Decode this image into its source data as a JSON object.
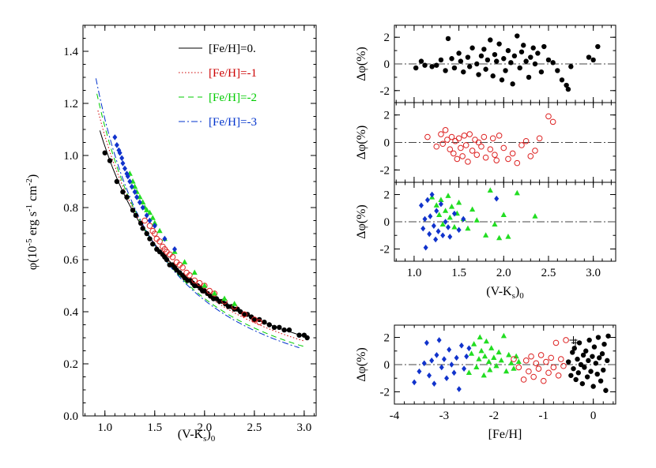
{
  "chart_data": [
    {
      "type": "scatter",
      "id": "main",
      "xlabel": "(V-K",
      "xlabel_sub": "s",
      "xlabel_tail": ")",
      "xlabel_sub2": "0",
      "ylabel_parts": [
        "φ(10",
        "-5",
        " erg s",
        "-1",
        " cm",
        "-2",
        ")"
      ],
      "xlim": [
        0.78,
        3.12
      ],
      "ylim": [
        0.0,
        1.5
      ],
      "xticks": [
        1.0,
        1.5,
        2.0,
        2.5,
        3.0
      ],
      "xtick_labels": [
        "1.0",
        "1.5",
        "2.0",
        "2.5",
        "3.0"
      ],
      "yticks": [
        0.0,
        0.2,
        0.4,
        0.6,
        0.8,
        1.0,
        1.2,
        1.4
      ],
      "ytick_labels": [
        "0.0",
        "0.2",
        "0.4",
        "0.6",
        "0.8",
        "1.0",
        "1.2",
        "1.4"
      ],
      "legend_position": "top-right",
      "legend": [
        {
          "label": "[Fe/H]=0.",
          "color": "#000000",
          "dash": "solid"
        },
        {
          "label": "[Fe/H]=-1",
          "color": "#cc0000",
          "dash": "dotted"
        },
        {
          "label": "[Fe/H]=-2",
          "color": "#00cc00",
          "dash": "dashed"
        },
        {
          "label": "[Fe/H]=-3",
          "color": "#0033cc",
          "dash": "dashdot"
        }
      ],
      "series": [
        {
          "name": "[Fe/H]=0.",
          "marker": "filled-circle",
          "color": "#000000",
          "x": [
            1.0,
            1.05,
            1.12,
            1.18,
            1.22,
            1.28,
            1.31,
            1.36,
            1.38,
            1.42,
            1.45,
            1.48,
            1.52,
            1.55,
            1.58,
            1.6,
            1.62,
            1.65,
            1.68,
            1.7,
            1.72,
            1.75,
            1.78,
            1.8,
            1.83,
            1.86,
            1.88,
            1.9,
            1.93,
            1.96,
            1.98,
            2.0,
            2.03,
            2.06,
            2.09,
            2.12,
            2.15,
            2.18,
            2.21,
            2.24,
            2.27,
            2.3,
            2.33,
            2.36,
            2.4,
            2.43,
            2.47,
            2.5,
            2.55,
            2.6,
            2.65,
            2.7,
            2.75,
            2.8,
            2.85,
            2.95,
            3.0,
            3.03
          ],
          "y": [
            1.01,
            0.98,
            0.9,
            0.86,
            0.84,
            0.79,
            0.77,
            0.74,
            0.72,
            0.7,
            0.68,
            0.66,
            0.64,
            0.63,
            0.62,
            0.61,
            0.6,
            0.58,
            0.58,
            0.57,
            0.56,
            0.55,
            0.54,
            0.53,
            0.52,
            0.52,
            0.51,
            0.5,
            0.5,
            0.49,
            0.48,
            0.48,
            0.47,
            0.46,
            0.45,
            0.45,
            0.44,
            0.44,
            0.43,
            0.42,
            0.42,
            0.41,
            0.41,
            0.4,
            0.39,
            0.39,
            0.38,
            0.37,
            0.37,
            0.36,
            0.35,
            0.34,
            0.34,
            0.33,
            0.33,
            0.31,
            0.31,
            0.3
          ]
        },
        {
          "name": "[Fe/H]=-1",
          "marker": "open-circle",
          "color": "#dd2222",
          "x": [
            1.4,
            1.45,
            1.48,
            1.5,
            1.52,
            1.55,
            1.58,
            1.6,
            1.62,
            1.65,
            1.68,
            1.72,
            1.75,
            1.78,
            1.82,
            1.85,
            1.9,
            1.95,
            2.0,
            2.05,
            2.1,
            2.2,
            2.3,
            2.4,
            2.5,
            2.55
          ],
          "y": [
            0.75,
            0.73,
            0.71,
            0.7,
            0.68,
            0.67,
            0.65,
            0.64,
            0.63,
            0.62,
            0.61,
            0.59,
            0.58,
            0.57,
            0.55,
            0.54,
            0.52,
            0.51,
            0.5,
            0.48,
            0.47,
            0.44,
            0.42,
            0.39,
            0.37,
            0.36
          ]
        },
        {
          "name": "[Fe/H]=-2",
          "marker": "filled-triangle",
          "color": "#22dd22",
          "x": [
            1.25,
            1.28,
            1.3,
            1.32,
            1.35,
            1.38,
            1.4,
            1.42,
            1.45,
            1.48,
            1.5,
            1.55,
            1.6,
            1.7,
            1.8,
            1.9,
            2.0,
            2.1,
            2.2,
            2.3
          ],
          "y": [
            0.93,
            0.9,
            0.88,
            0.86,
            0.84,
            0.82,
            0.8,
            0.79,
            0.78,
            0.76,
            0.74,
            0.71,
            0.68,
            0.63,
            0.59,
            0.55,
            0.5,
            0.47,
            0.45,
            0.43
          ]
        },
        {
          "name": "[Fe/H]=-3",
          "marker": "filled-diamond",
          "color": "#1133cc",
          "x": [
            1.1,
            1.12,
            1.14,
            1.15,
            1.17,
            1.18,
            1.2,
            1.22,
            1.23,
            1.25,
            1.27,
            1.3,
            1.32,
            1.35,
            1.38,
            1.42,
            1.45,
            1.5,
            1.6,
            1.7
          ],
          "y": [
            1.07,
            1.04,
            1.02,
            1.01,
            0.99,
            0.97,
            0.95,
            0.93,
            0.92,
            0.9,
            0.88,
            0.86,
            0.84,
            0.82,
            0.8,
            0.77,
            0.75,
            0.73,
            0.68,
            0.64
          ]
        }
      ],
      "fits": [
        {
          "name": "[Fe/H]=0.",
          "dash": "solid",
          "color": "#000000",
          "x0": 0.95,
          "x1": 3.05,
          "amp": 1.035,
          "exp": -1.11
        },
        {
          "name": "[Fe/H]=-1",
          "dash": "dotted",
          "color": "#cc0000",
          "x0": 0.93,
          "x1": 3.0,
          "amp": 1.075,
          "exp": -1.2
        },
        {
          "name": "[Fe/H]=-2",
          "dash": "dashed",
          "color": "#00cc00",
          "x0": 0.92,
          "x1": 3.0,
          "amp": 1.11,
          "exp": -1.3
        },
        {
          "name": "[Fe/H]=-3",
          "dash": "dashdot",
          "color": "#0033cc",
          "x0": 0.91,
          "x1": 2.95,
          "amp": 1.14,
          "exp": -1.36
        }
      ]
    },
    {
      "type": "scatter",
      "id": "res0",
      "ylabel": "Δφ(%)",
      "xlim": [
        0.78,
        3.25
      ],
      "ylim": [
        -2.9,
        2.9
      ],
      "yticks": [
        -2,
        0,
        2
      ],
      "ytick_labels": [
        "-2",
        "0",
        "2"
      ],
      "xticks": [
        1.0,
        1.5,
        2.0,
        2.5,
        3.0
      ],
      "series": [
        {
          "name": "[Fe/H]=0.",
          "marker": "filled-circle",
          "color": "#000000",
          "x": [
            1.02,
            1.08,
            1.12,
            1.2,
            1.25,
            1.3,
            1.35,
            1.38,
            1.42,
            1.45,
            1.5,
            1.52,
            1.55,
            1.6,
            1.62,
            1.65,
            1.7,
            1.72,
            1.75,
            1.78,
            1.8,
            1.82,
            1.85,
            1.88,
            1.9,
            1.92,
            1.95,
            1.98,
            2.0,
            2.02,
            2.05,
            2.08,
            2.1,
            2.12,
            2.15,
            2.18,
            2.2,
            2.22,
            2.25,
            2.28,
            2.3,
            2.33,
            2.35,
            2.38,
            2.42,
            2.45,
            2.5,
            2.55,
            2.6,
            2.65,
            2.7,
            2.72,
            2.75,
            2.95,
            3.0,
            3.05
          ],
          "y": [
            -0.3,
            0.2,
            -0.1,
            -0.2,
            -0.1,
            0.3,
            -0.5,
            1.9,
            0.4,
            -0.3,
            0.8,
            0.2,
            -0.6,
            0.5,
            -0.2,
            1.2,
            0.0,
            -0.8,
            0.6,
            1.1,
            -0.4,
            0.3,
            1.8,
            -0.9,
            0.7,
            0.2,
            1.5,
            -1.2,
            0.4,
            -0.5,
            1.0,
            0.1,
            -1.5,
            0.6,
            2.1,
            -0.3,
            0.9,
            1.4,
            0.2,
            -1.0,
            0.5,
            1.2,
            0.0,
            0.8,
            -0.6,
            1.3,
            0.3,
            0.1,
            -0.5,
            -1.2,
            -1.6,
            -1.9,
            -0.2,
            0.5,
            0.3,
            1.3
          ]
        }
      ]
    },
    {
      "type": "scatter",
      "id": "res1",
      "ylabel": "Δφ(%)",
      "xlim": [
        0.78,
        3.25
      ],
      "ylim": [
        -2.9,
        2.9
      ],
      "yticks": [
        -2,
        0,
        2
      ],
      "ytick_labels": [
        "-2",
        "0",
        "2"
      ],
      "xticks": [
        1.0,
        1.5,
        2.0,
        2.5,
        3.0
      ],
      "series": [
        {
          "name": "[Fe/H]=-1",
          "marker": "open-circle",
          "color": "#dd2222",
          "x": [
            1.15,
            1.25,
            1.3,
            1.32,
            1.35,
            1.37,
            1.4,
            1.42,
            1.44,
            1.46,
            1.48,
            1.5,
            1.52,
            1.54,
            1.56,
            1.58,
            1.6,
            1.62,
            1.65,
            1.68,
            1.7,
            1.72,
            1.75,
            1.78,
            1.8,
            1.85,
            1.88,
            1.9,
            1.92,
            1.95,
            2.0,
            2.05,
            2.1,
            2.15,
            2.2,
            2.25,
            2.3,
            2.35,
            2.4,
            2.5,
            2.55
          ],
          "y": [
            0.4,
            -0.3,
            0.6,
            -0.1,
            0.9,
            0.2,
            -0.5,
            0.4,
            -0.8,
            0.1,
            -1.2,
            0.3,
            -0.4,
            -1.0,
            0.5,
            -0.2,
            -1.4,
            0.6,
            -0.6,
            0.2,
            -0.9,
            0.0,
            -0.3,
            0.4,
            -1.1,
            -0.5,
            0.3,
            -0.9,
            -1.3,
            0.5,
            -0.4,
            -1.2,
            -0.8,
            -1.5,
            -0.2,
            0.1,
            -1.0,
            -0.6,
            0.3,
            1.9,
            1.5
          ]
        }
      ]
    },
    {
      "type": "scatter",
      "id": "res2",
      "ylabel": "Δφ(%)",
      "xlabel": "(V-K",
      "xlabel_sub": "s",
      "xlabel_tail": ")",
      "xlabel_sub2": "0",
      "xlim": [
        0.78,
        3.25
      ],
      "ylim": [
        -2.9,
        2.9
      ],
      "yticks": [
        -2,
        0,
        2
      ],
      "ytick_labels": [
        "-2",
        "0",
        "2"
      ],
      "xticks": [
        1.0,
        1.5,
        2.0,
        2.5,
        3.0
      ],
      "xtick_labels": [
        "1.0",
        "1.5",
        "2.0",
        "2.5",
        "3.0"
      ],
      "series": [
        {
          "name": "[Fe/H]=-2",
          "marker": "filled-triangle",
          "color": "#22dd22",
          "x": [
            1.2,
            1.25,
            1.28,
            1.3,
            1.32,
            1.35,
            1.38,
            1.4,
            1.42,
            1.45,
            1.48,
            1.5,
            1.55,
            1.6,
            1.65,
            1.7,
            1.8,
            1.85,
            1.9,
            1.95,
            2.0,
            2.05,
            2.15,
            2.35
          ],
          "y": [
            1.8,
            1.2,
            0.5,
            1.6,
            -0.2,
            0.8,
            1.9,
            0.3,
            1.1,
            -0.4,
            0.6,
            1.4,
            0.2,
            -0.5,
            0.9,
            0.1,
            -1.0,
            2.3,
            -0.2,
            -1.2,
            0.5,
            -1.1,
            2.1,
            0.4
          ]
        },
        {
          "name": "[Fe/H]=-3",
          "marker": "filled-diamond",
          "color": "#1133cc",
          "x": [
            1.08,
            1.1,
            1.12,
            1.13,
            1.15,
            1.17,
            1.18,
            1.2,
            1.22,
            1.24,
            1.25,
            1.27,
            1.3,
            1.32,
            1.35,
            1.38,
            1.4,
            1.45,
            1.5,
            1.55,
            1.92
          ],
          "y": [
            1.2,
            -0.5,
            0.2,
            -1.9,
            1.6,
            -0.9,
            0.4,
            2.0,
            -0.3,
            -1.3,
            0.8,
            -0.7,
            1.3,
            -1.0,
            0.0,
            -0.4,
            -1.1,
            0.6,
            -0.6,
            0.2,
            1.7
          ]
        }
      ]
    },
    {
      "type": "scatter",
      "id": "res3",
      "ylabel": "Δφ(%)",
      "xlabel": "[Fe/H]",
      "xlim": [
        -4.0,
        0.45
      ],
      "ylim": [
        -2.9,
        2.9
      ],
      "yticks": [
        -2,
        0,
        2
      ],
      "ytick_labels": [
        "-2",
        "0",
        "2"
      ],
      "xticks": [
        -4,
        -3,
        -2,
        -1,
        0
      ],
      "xtick_labels": [
        "-4",
        "-3",
        "-2",
        "-1",
        "0"
      ],
      "series": [
        {
          "name": "[Fe/H]=-3",
          "marker": "filled-diamond",
          "color": "#1133cc",
          "x": [
            -3.6,
            -3.5,
            -3.4,
            -3.35,
            -3.3,
            -3.25,
            -3.2,
            -3.15,
            -3.1,
            -3.05,
            -3.0,
            -2.95,
            -2.9,
            -2.85,
            -2.8,
            -2.75,
            -2.7,
            -2.65,
            -2.6,
            -2.55,
            -2.5
          ],
          "y": [
            -1.3,
            -0.5,
            0.1,
            1.6,
            -0.8,
            0.3,
            -1.4,
            0.7,
            1.8,
            -0.2,
            0.4,
            -1.0,
            1.1,
            0.0,
            -0.6,
            0.5,
            -1.8,
            1.4,
            -0.3,
            0.6,
            1.2
          ]
        },
        {
          "name": "[Fe/H]=-2",
          "marker": "filled-triangle",
          "color": "#22dd22",
          "x": [
            -2.5,
            -2.45,
            -2.4,
            -2.35,
            -2.3,
            -2.28,
            -2.25,
            -2.2,
            -2.18,
            -2.15,
            -2.1,
            -2.08,
            -2.05,
            -2.0,
            -1.95,
            -1.9,
            -1.85,
            -1.8,
            -1.75,
            -1.7,
            -1.65,
            -1.6,
            -1.55,
            -1.5
          ],
          "y": [
            -0.6,
            0.8,
            1.5,
            -0.2,
            0.4,
            2.0,
            1.0,
            -0.8,
            0.6,
            1.7,
            0.2,
            -0.4,
            1.2,
            0.5,
            -0.1,
            0.9,
            0.3,
            2.1,
            -0.5,
            0.7,
            0.1,
            -0.3,
            0.6,
            0.2
          ]
        },
        {
          "name": "[Fe/H]=-1",
          "marker": "open-circle",
          "color": "#dd2222",
          "x": [
            -1.6,
            -1.5,
            -1.4,
            -1.35,
            -1.3,
            -1.25,
            -1.2,
            -1.15,
            -1.1,
            -1.05,
            -1.0,
            -0.95,
            -0.9,
            -0.85,
            -0.8,
            -0.75,
            -0.7,
            -0.65,
            -0.6,
            -0.55
          ],
          "y": [
            0.4,
            -0.2,
            -1.1,
            0.3,
            -0.5,
            0.6,
            -0.9,
            0.1,
            -0.3,
            0.7,
            -1.2,
            0.2,
            -0.6,
            0.5,
            -0.2,
            1.6,
            -0.8,
            0.4,
            -0.1,
            1.8
          ]
        },
        {
          "name": "[Fe/H]=0.",
          "marker": "filled-circle",
          "color": "#000000",
          "x": [
            -0.5,
            -0.45,
            -0.42,
            -0.4,
            -0.38,
            -0.35,
            -0.32,
            -0.3,
            -0.28,
            -0.25,
            -0.22,
            -0.2,
            -0.18,
            -0.15,
            -0.12,
            -0.1,
            -0.08,
            -0.05,
            -0.02,
            0.0,
            0.02,
            0.05,
            0.08,
            0.1,
            0.12,
            0.15,
            0.18,
            0.2,
            0.22,
            0.25,
            0.28,
            0.3
          ],
          "y": [
            0.2,
            -0.8,
            0.9,
            -0.3,
            1.2,
            -1.1,
            0.4,
            -0.6,
            1.6,
            0.0,
            -1.4,
            0.7,
            -0.2,
            1.0,
            -0.9,
            0.3,
            1.8,
            -0.5,
            0.6,
            -1.6,
            1.3,
            0.1,
            -0.7,
            2.0,
            0.5,
            -1.2,
            0.8,
            -0.4,
            1.5,
            -1.9,
            0.3,
            2.1
          ]
        },
        {
          "name": "plus",
          "marker": "plus",
          "color": "#000000",
          "x": [
            -0.4,
            -0.36
          ],
          "y": [
            1.8,
            1.6
          ]
        }
      ]
    }
  ]
}
